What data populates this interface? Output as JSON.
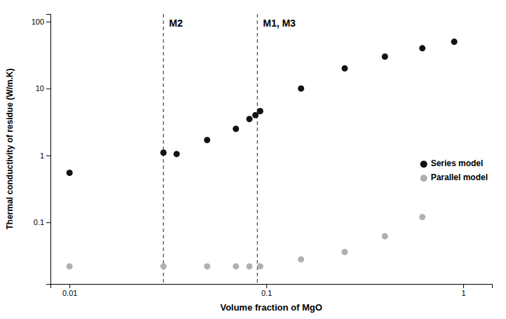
{
  "chart_data": {
    "type": "scatter",
    "xlabel": "Volume fraction of MgO",
    "ylabel": "Thermal conductivity of residue (W/m.K)",
    "log": true,
    "grid": false,
    "legend": "right",
    "xlim": [
      0.008,
      1.4
    ],
    "ylim": [
      0.012,
      130
    ],
    "xticks": [
      0.01,
      0.1,
      1
    ],
    "yticks": [
      0.1,
      1,
      10,
      100
    ],
    "series": [
      {
        "name": "Series model",
        "color": "#111111",
        "marker": "circle",
        "x": [
          0.01,
          0.03,
          0.035,
          0.05,
          0.07,
          0.082,
          0.088,
          0.093,
          0.15,
          0.25,
          0.4,
          0.62,
          0.9
        ],
        "values": [
          0.55,
          1.1,
          1.05,
          1.7,
          2.5,
          3.5,
          4.0,
          4.6,
          10.0,
          20.0,
          30.0,
          40.0,
          50.0
        ]
      },
      {
        "name": "Parallel model",
        "color": "#b0b0b0",
        "marker": "circle",
        "x": [
          0.01,
          0.03,
          0.05,
          0.07,
          0.082,
          0.093,
          0.15,
          0.25,
          0.4,
          0.62,
          0.9
        ],
        "values": [
          0.022,
          0.022,
          0.022,
          0.022,
          0.022,
          0.022,
          0.028,
          0.036,
          0.062,
          0.12,
          50.0
        ]
      }
    ],
    "annotations": [
      {
        "type": "vline",
        "x": 0.03,
        "text": "M2"
      },
      {
        "type": "vline",
        "x": 0.09,
        "text": "M1, M3"
      }
    ]
  }
}
